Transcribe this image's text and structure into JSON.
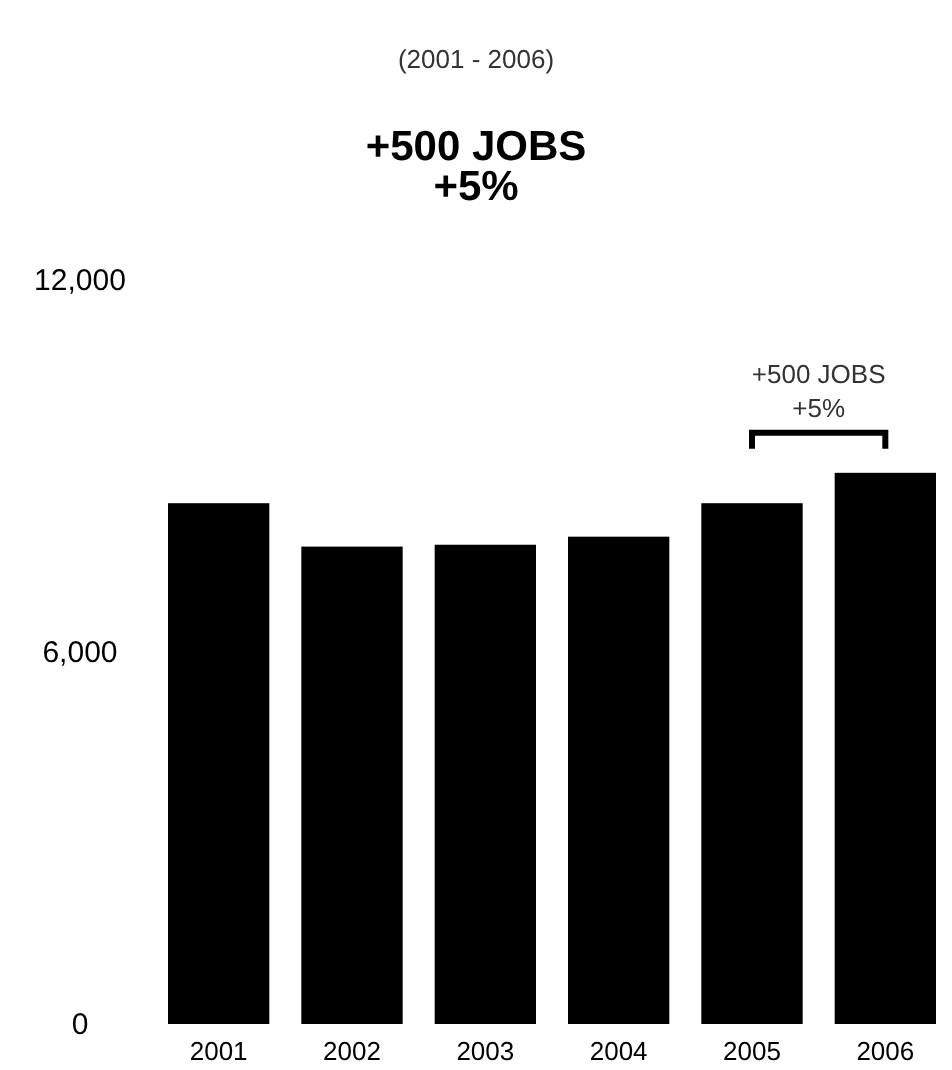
{
  "chart_data": {
    "type": "bar",
    "subtitle": "(2001 - 2006)",
    "title": "+500 JOBS\n+5%",
    "categories": [
      "2001",
      "2002",
      "2003",
      "2004",
      "2005",
      "2006"
    ],
    "values": [
      8400,
      7700,
      7730,
      7860,
      8400,
      8890
    ],
    "color": "#000000",
    "ylim": [
      0,
      12000
    ],
    "yticks": [
      {
        "value": 0,
        "label": "0"
      },
      {
        "value": 6000,
        "label": "6,000"
      },
      {
        "value": 12000,
        "label": "12,000"
      }
    ],
    "annotations": [
      {
        "text": "+500 JOBS\n+5%",
        "x": "2006",
        "y": 8890
      }
    ]
  }
}
